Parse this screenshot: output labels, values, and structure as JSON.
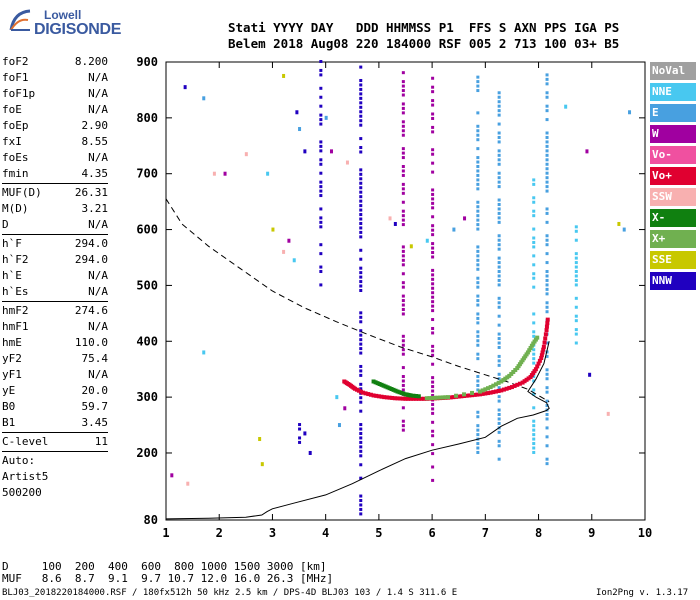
{
  "logo": {
    "top": "Lowell",
    "bottom": "DIGISONDE"
  },
  "header": {
    "row1": "Stati YYYY DAY   DDD HHMMSS P1  FFS S AXN PPS IGA PS",
    "row2": "Belem 2018 Aug08 220 184000 RSF 005 2 713 100 03+ B5"
  },
  "params": {
    "group1": [
      {
        "k": "foF2",
        "v": "8.200"
      },
      {
        "k": "foF1",
        "v": "N/A"
      },
      {
        "k": "foF1p",
        "v": "N/A"
      },
      {
        "k": "foE",
        "v": "N/A"
      },
      {
        "k": "foEp",
        "v": "2.90"
      },
      {
        "k": "fxI",
        "v": "8.55"
      },
      {
        "k": "foEs",
        "v": "N/A"
      },
      {
        "k": "fmin",
        "v": "4.35"
      }
    ],
    "group2": [
      {
        "k": "MUF(D)",
        "v": "26.31"
      },
      {
        "k": "M(D)",
        "v": "3.21"
      },
      {
        "k": "D",
        "v": "N/A"
      }
    ],
    "group3": [
      {
        "k": "h`F",
        "v": "294.0"
      },
      {
        "k": "h`F2",
        "v": "294.0"
      },
      {
        "k": "h`E",
        "v": "N/A"
      },
      {
        "k": "h`Es",
        "v": "N/A"
      }
    ],
    "group4": [
      {
        "k": "hmF2",
        "v": "274.6"
      },
      {
        "k": "hmF1",
        "v": "N/A"
      },
      {
        "k": "hmE",
        "v": "110.0"
      },
      {
        "k": "yF2",
        "v": "75.4"
      },
      {
        "k": "yF1",
        "v": "N/A"
      },
      {
        "k": "yE",
        "v": "20.0"
      },
      {
        "k": "B0",
        "v": "59.7"
      },
      {
        "k": "B1",
        "v": "3.45"
      }
    ],
    "clevel": {
      "k": "C-level",
      "v": "11"
    },
    "auto": [
      "Auto:",
      "Artist5",
      "500200"
    ]
  },
  "footer": {
    "d_row": "D     100  200  400  600  800 1000 1500 3000 [km]",
    "muf_row": "MUF   8.6  8.7  9.1  9.7 10.7 12.0 16.0 26.3 [MHz]",
    "info": "BLJ03_2018220184000.RSF / 180fx512h 50 kHz 2.5 km / DPS-4D BLJ03 103 / 1.4 S 311.6 E",
    "version": "Ion2Png v. 1.3.17"
  },
  "legend": [
    {
      "label": "NoVal",
      "color": "#a0a0a0"
    },
    {
      "label": "NNE",
      "color": "#48c8f0"
    },
    {
      "label": "E",
      "color": "#48a0e0"
    },
    {
      "label": "W",
      "color": "#a000a0"
    },
    {
      "label": "Vo-",
      "color": "#f050a0"
    },
    {
      "label": "Vo+",
      "color": "#e00030"
    },
    {
      "label": "SSW",
      "color": "#f8b0b0"
    },
    {
      "label": "X-",
      "color": "#108010"
    },
    {
      "label": "X+",
      "color": "#70b050"
    },
    {
      "label": "SSE",
      "color": "#c8c800"
    },
    {
      "label": "NNW",
      "color": "#2000c0"
    }
  ],
  "chart_data": {
    "type": "scatter",
    "xlim": [
      1,
      10
    ],
    "ylim": [
      80,
      900
    ],
    "x_ticks": [
      1,
      2,
      3,
      4,
      5,
      6,
      7,
      8,
      9,
      10
    ],
    "y_ticks": [
      80,
      200,
      300,
      400,
      500,
      600,
      700,
      800,
      900
    ],
    "y_tick_labels": [
      "80",
      "200",
      "300",
      "400",
      "500",
      "600",
      "700",
      "800",
      "900"
    ],
    "grid": false,
    "series": [
      {
        "name": "Vo+",
        "color": "#e00030",
        "points": [
          [
            4.35,
            328
          ],
          [
            4.45,
            322
          ],
          [
            4.55,
            315
          ],
          [
            4.7,
            308
          ],
          [
            4.9,
            303
          ],
          [
            5.1,
            300
          ],
          [
            5.3,
            298
          ],
          [
            5.5,
            297
          ],
          [
            5.7,
            297
          ],
          [
            5.9,
            297
          ],
          [
            6.1,
            298
          ],
          [
            6.3,
            299
          ],
          [
            6.5,
            301
          ],
          [
            6.7,
            303
          ],
          [
            6.9,
            305
          ],
          [
            7.1,
            308
          ],
          [
            7.3,
            312
          ],
          [
            7.5,
            318
          ],
          [
            7.7,
            326
          ],
          [
            7.85,
            336
          ],
          [
            7.95,
            350
          ],
          [
            8.05,
            370
          ],
          [
            8.1,
            390
          ],
          [
            8.15,
            420
          ],
          [
            8.18,
            445
          ]
        ]
      },
      {
        "name": "X+",
        "color": "#70b050",
        "points": [
          [
            5.9,
            298
          ],
          [
            6.1,
            299
          ],
          [
            6.3,
            300
          ],
          [
            6.9,
            310
          ],
          [
            7.1,
            318
          ],
          [
            7.3,
            328
          ],
          [
            7.45,
            338
          ],
          [
            7.6,
            352
          ],
          [
            7.7,
            366
          ],
          [
            7.8,
            380
          ],
          [
            7.9,
            396
          ],
          [
            8.0,
            410
          ]
        ]
      },
      {
        "name": "X-",
        "color": "#108010",
        "points": [
          [
            4.9,
            328
          ],
          [
            5.05,
            322
          ],
          [
            5.2,
            316
          ],
          [
            5.35,
            310
          ],
          [
            5.5,
            305
          ],
          [
            5.6,
            303
          ],
          [
            5.8,
            301
          ]
        ]
      }
    ],
    "profile_solid": [
      [
        1.0,
        82
      ],
      [
        1.8,
        83
      ],
      [
        2.5,
        85
      ],
      [
        2.8,
        89
      ],
      [
        2.9,
        95
      ],
      [
        3.0,
        100
      ],
      [
        3.4,
        110
      ],
      [
        4.0,
        125
      ],
      [
        4.5,
        145
      ],
      [
        5.0,
        168
      ],
      [
        5.5,
        190
      ],
      [
        6.0,
        205
      ],
      [
        6.5,
        216
      ],
      [
        7.0,
        228
      ],
      [
        7.3,
        248
      ],
      [
        7.6,
        262
      ],
      [
        7.9,
        268
      ],
      [
        8.15,
        276
      ],
      [
        8.2,
        280
      ],
      [
        8.15,
        290
      ],
      [
        7.95,
        300
      ],
      [
        7.8,
        310
      ],
      [
        7.95,
        332
      ],
      [
        8.1,
        360
      ],
      [
        8.2,
        400
      ]
    ],
    "profile_dashed": [
      [
        1.0,
        655
      ],
      [
        1.3,
        610
      ],
      [
        1.8,
        570
      ],
      [
        2.4,
        530
      ],
      [
        3.0,
        490
      ],
      [
        3.6,
        460
      ],
      [
        4.2,
        435
      ],
      [
        4.8,
        412
      ],
      [
        5.4,
        390
      ],
      [
        6.0,
        372
      ],
      [
        6.5,
        355
      ],
      [
        7.0,
        340
      ],
      [
        7.4,
        328
      ],
      [
        7.8,
        314
      ],
      [
        8.05,
        300
      ],
      [
        8.2,
        292
      ]
    ],
    "vertical_traces": [
      {
        "x": 4.65,
        "y0": 82,
        "y1": 890,
        "color": "#2000c0"
      },
      {
        "x": 6.85,
        "y0": 200,
        "y1": 880,
        "color": "#48a0e0"
      },
      {
        "x": 7.25,
        "y0": 180,
        "y1": 860,
        "color": "#48a0e0"
      },
      {
        "x": 6.0,
        "y0": 150,
        "y1": 890,
        "color": "#a000a0"
      },
      {
        "x": 5.45,
        "y0": 240,
        "y1": 880,
        "color": "#a000a0"
      },
      {
        "x": 3.5,
        "y0": 210,
        "y1": 260,
        "color": "#2000c0"
      },
      {
        "x": 3.9,
        "y0": 500,
        "y1": 900,
        "color": "#2000c0"
      },
      {
        "x": 8.15,
        "y0": 180,
        "y1": 880,
        "color": "#48a0e0"
      },
      {
        "x": 7.9,
        "y0": 200,
        "y1": 700,
        "color": "#48c8f0"
      },
      {
        "x": 8.7,
        "y0": 380,
        "y1": 620,
        "color": "#48c8f0"
      }
    ],
    "scatter_noise": [
      [
        1.35,
        855
      ],
      [
        1.7,
        835
      ],
      [
        2.1,
        700
      ],
      [
        2.5,
        735
      ],
      [
        2.9,
        700
      ],
      [
        3.2,
        875
      ],
      [
        3.45,
        810
      ],
      [
        3.5,
        780
      ],
      [
        3.3,
        580
      ],
      [
        3.2,
        560
      ],
      [
        3.4,
        545
      ],
      [
        2.75,
        225
      ],
      [
        3.6,
        740
      ],
      [
        4.0,
        800
      ],
      [
        4.1,
        740
      ],
      [
        4.4,
        720
      ],
      [
        4.2,
        300
      ],
      [
        3.0,
        600
      ],
      [
        3.6,
        235
      ],
      [
        4.25,
        250
      ],
      [
        4.35,
        280
      ],
      [
        1.9,
        700
      ],
      [
        1.7,
        380
      ],
      [
        2.8,
        180
      ],
      [
        3.7,
        200
      ],
      [
        9.7,
        810
      ],
      [
        8.9,
        740
      ],
      [
        9.3,
        270
      ],
      [
        8.5,
        820
      ],
      [
        9.5,
        610
      ],
      [
        8.95,
        340
      ],
      [
        9.6,
        600
      ],
      [
        1.1,
        160
      ],
      [
        1.4,
        145
      ],
      [
        5.9,
        580
      ],
      [
        5.6,
        570
      ],
      [
        5.3,
        610
      ],
      [
        6.4,
        600
      ],
      [
        6.6,
        620
      ],
      [
        5.2,
        620
      ]
    ]
  }
}
